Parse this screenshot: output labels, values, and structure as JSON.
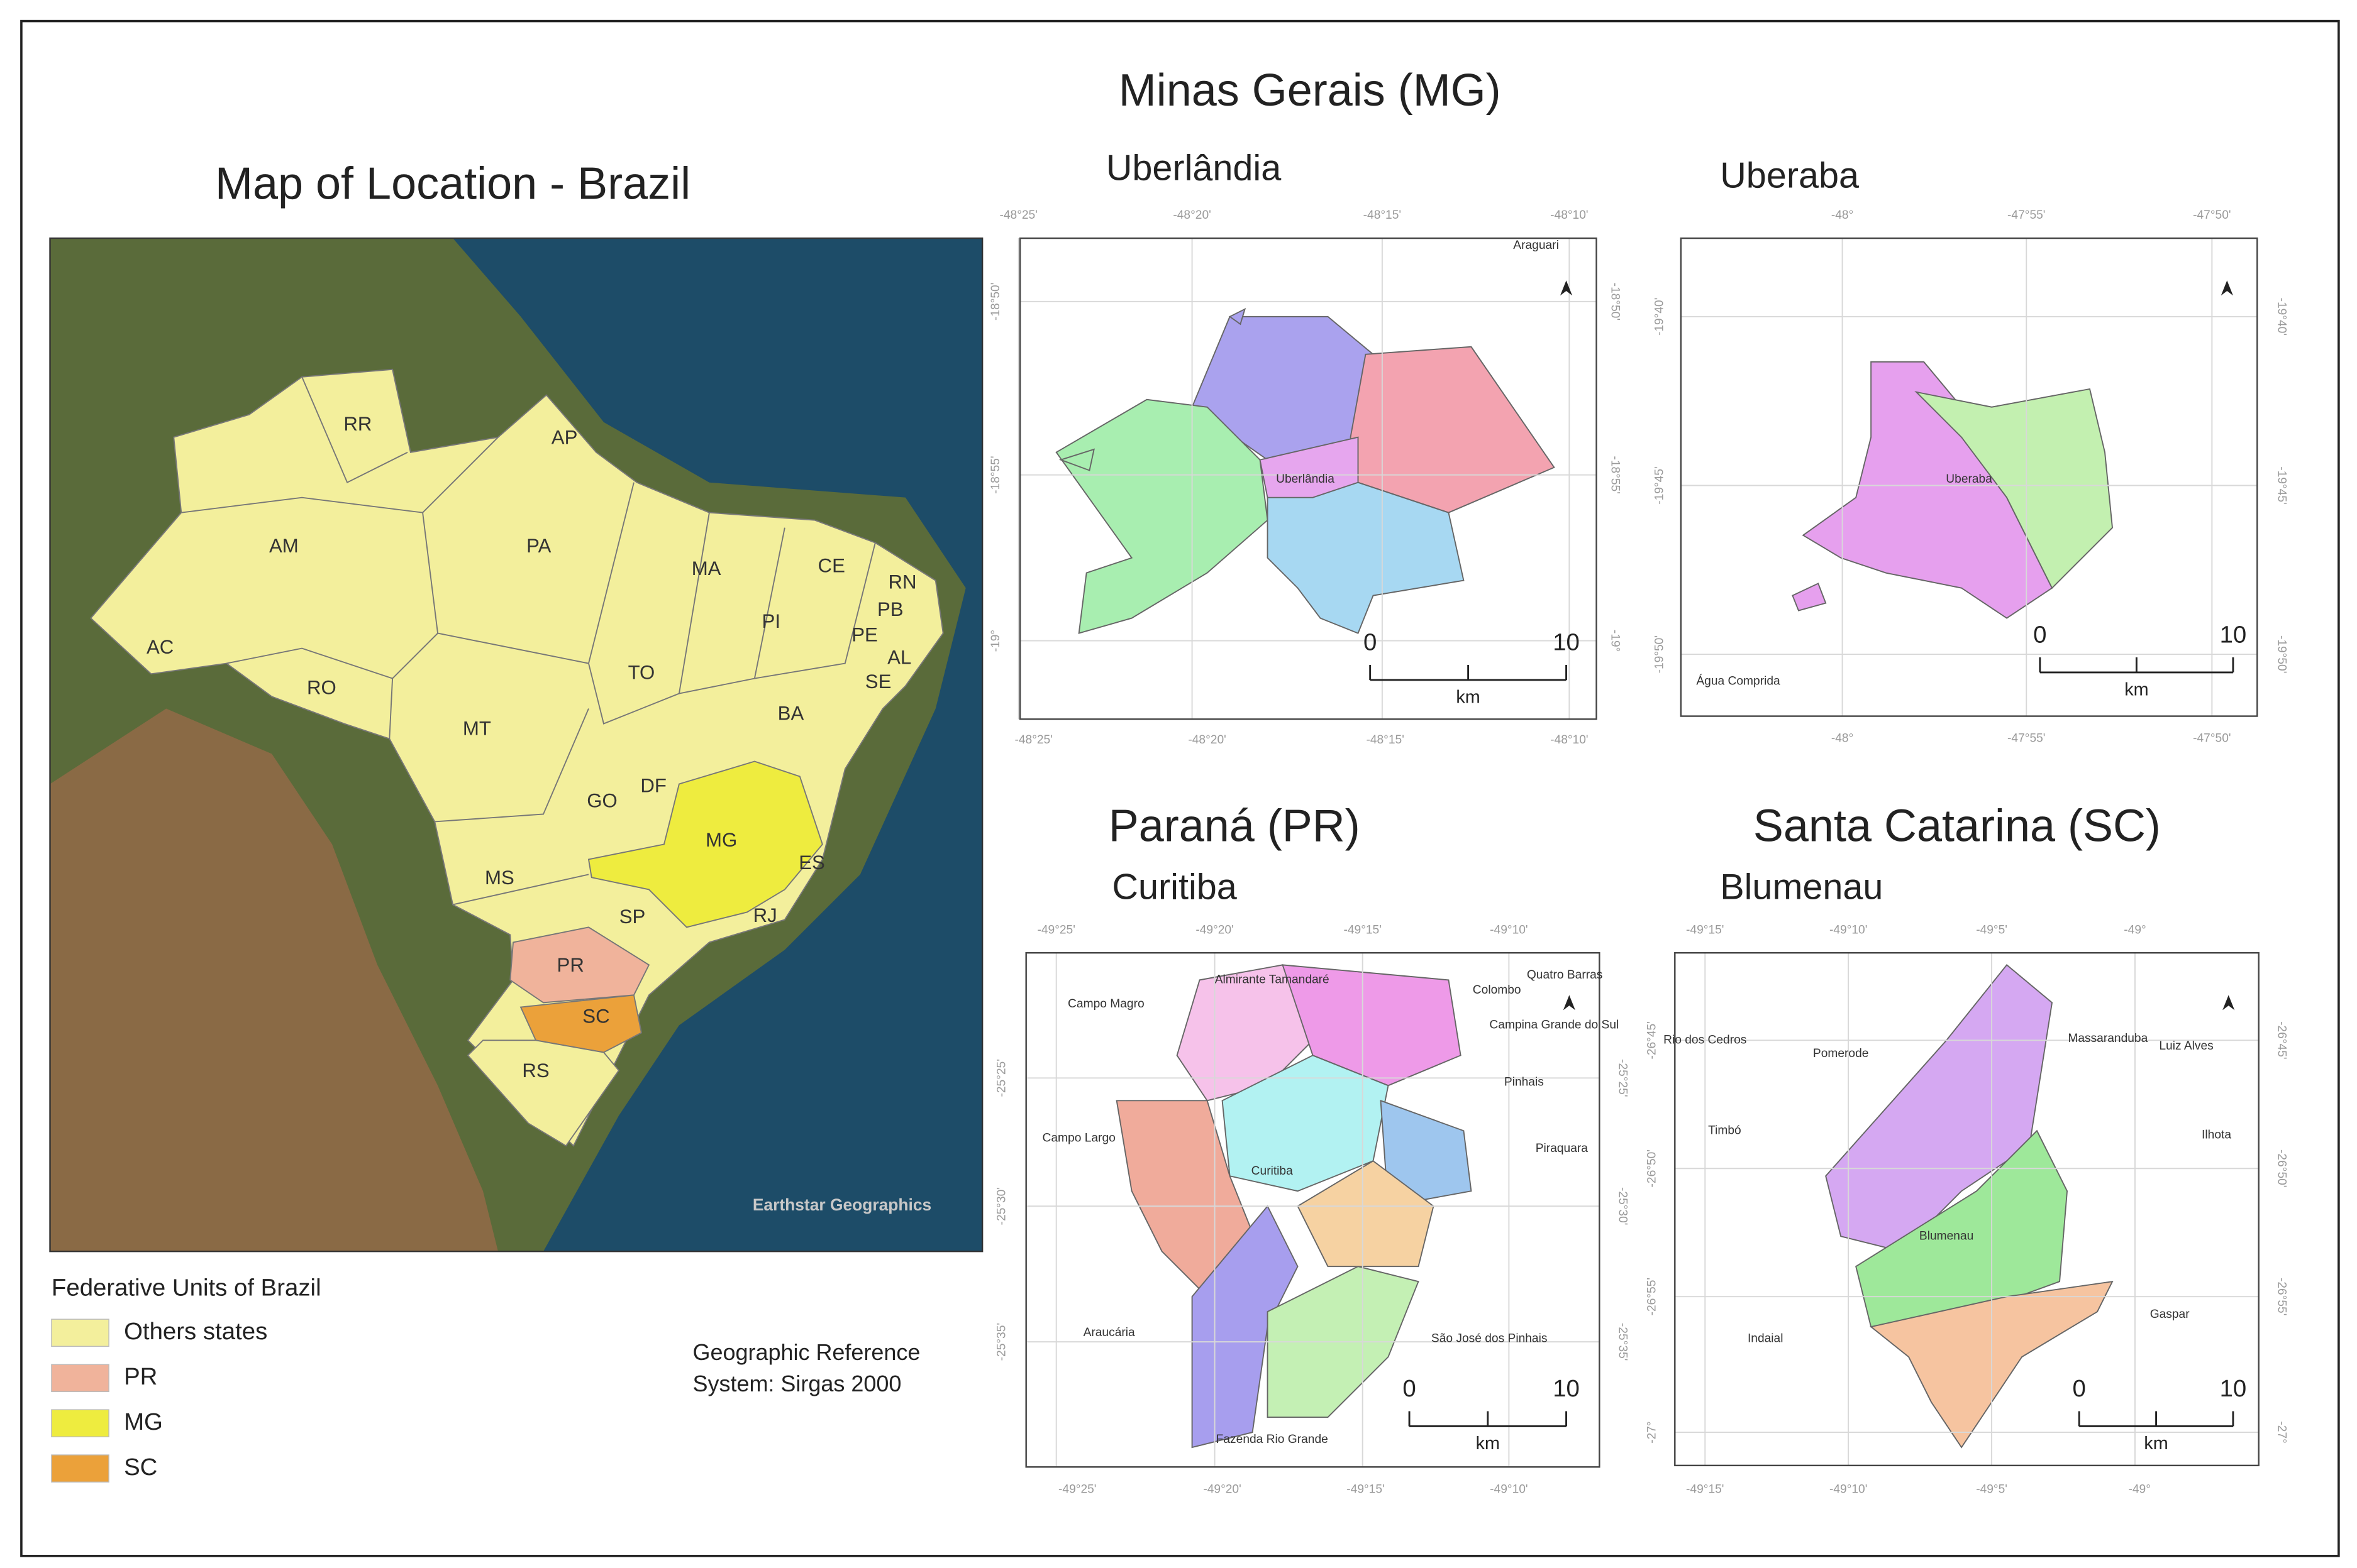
{
  "main_map": {
    "title": "Map of Location - Brazil",
    "states": [
      "RR",
      "AP",
      "AM",
      "PA",
      "MA",
      "CE",
      "RN",
      "PB",
      "PE",
      "AL",
      "SE",
      "PI",
      "AC",
      "RO",
      "TO",
      "BA",
      "MT",
      "GO",
      "DF",
      "MG",
      "ES",
      "MS",
      "SP",
      "RJ",
      "PR",
      "SC",
      "RS"
    ],
    "credit": "Earthstar Geographics"
  },
  "legend": {
    "title": "Federative Units of Brazil",
    "items": [
      {
        "label": "Others states",
        "color": "#f3ef9c"
      },
      {
        "label": "PR",
        "color": "#f0b39b"
      },
      {
        "label": "MG",
        "color": "#eeec3f"
      },
      {
        "label": "SC",
        "color": "#eba13a"
      }
    ]
  },
  "reference": [
    "Geographic Reference",
    "System: Sirgas 2000"
  ],
  "sections": [
    "Minas Gerais (MG)",
    "Paraná (PR)",
    "Santa Catarina (SC)"
  ],
  "panels": [
    {
      "title": "Uberlândia",
      "places": [
        "Araguari",
        "Uberlândia"
      ],
      "top": [
        "-48°25'",
        "-48°20'",
        "-48°15'",
        "-48°10'"
      ],
      "bottom": [
        "-48°25'",
        "-48°20'",
        "-48°15'",
        "-48°10'"
      ],
      "left": [
        "-18°50'",
        "-18°55'",
        "-19°"
      ],
      "right": [
        "-18°50'",
        "-18°55'",
        "-19°"
      ],
      "scale": {
        "ticks": [
          0,
          10
        ],
        "unit": "km"
      }
    },
    {
      "title": "Uberaba",
      "places": [
        "Uberaba",
        "Água Comprida"
      ],
      "top": [
        "-48°",
        "-47°55'",
        "-47°50'"
      ],
      "bottom": [
        "-48°",
        "-47°55'",
        "-47°50'"
      ],
      "left": [
        "-19°40'",
        "-19°45'",
        "-19°50'"
      ],
      "right": [
        "-19°40'",
        "-19°45'",
        "-19°50'"
      ],
      "scale": {
        "ticks": [
          0,
          10
        ],
        "unit": "km"
      }
    },
    {
      "title": "Curitiba",
      "places": [
        "Almirante Tamandaré",
        "Colombo",
        "Quatro Barras",
        "Campina Grande do Sul",
        "Campo Magro",
        "Pinhais",
        "Campo Largo",
        "Piraquara",
        "Curitiba",
        "Araucária",
        "São José dos Pinhais",
        "Fazenda Rio Grande"
      ],
      "top": [
        "-49°25'",
        "-49°20'",
        "-49°15'",
        "-49°10'"
      ],
      "bottom": [
        "-49°25'",
        "-49°20'",
        "-49°15'",
        "-49°10'"
      ],
      "left": [
        "-25°25'",
        "-25°30'",
        "-25°35'"
      ],
      "right": [
        "-25°25'",
        "-25°30'",
        "-25°35'"
      ],
      "scale": {
        "ticks": [
          0,
          10
        ],
        "unit": "km"
      }
    },
    {
      "title": "Blumenau",
      "places": [
        "Rio dos Cedros",
        "Pomerode",
        "Massaranduba",
        "Luiz Alves",
        "Timbó",
        "Ilhota",
        "Blumenau",
        "Gaspar",
        "Indaial"
      ],
      "top": [
        "-49°15'",
        "-49°10'",
        "-49°5'",
        "-49°"
      ],
      "bottom": [
        "-49°15'",
        "-49°10'",
        "-49°5'",
        "-49°"
      ],
      "left": [
        "-26°45'",
        "-26°50'",
        "-26°55'",
        "-27°"
      ],
      "right": [
        "-26°45'",
        "-26°50'",
        "-26°55'",
        "-27°"
      ],
      "scale": {
        "ticks": [
          0,
          10
        ],
        "unit": "km"
      }
    }
  ]
}
